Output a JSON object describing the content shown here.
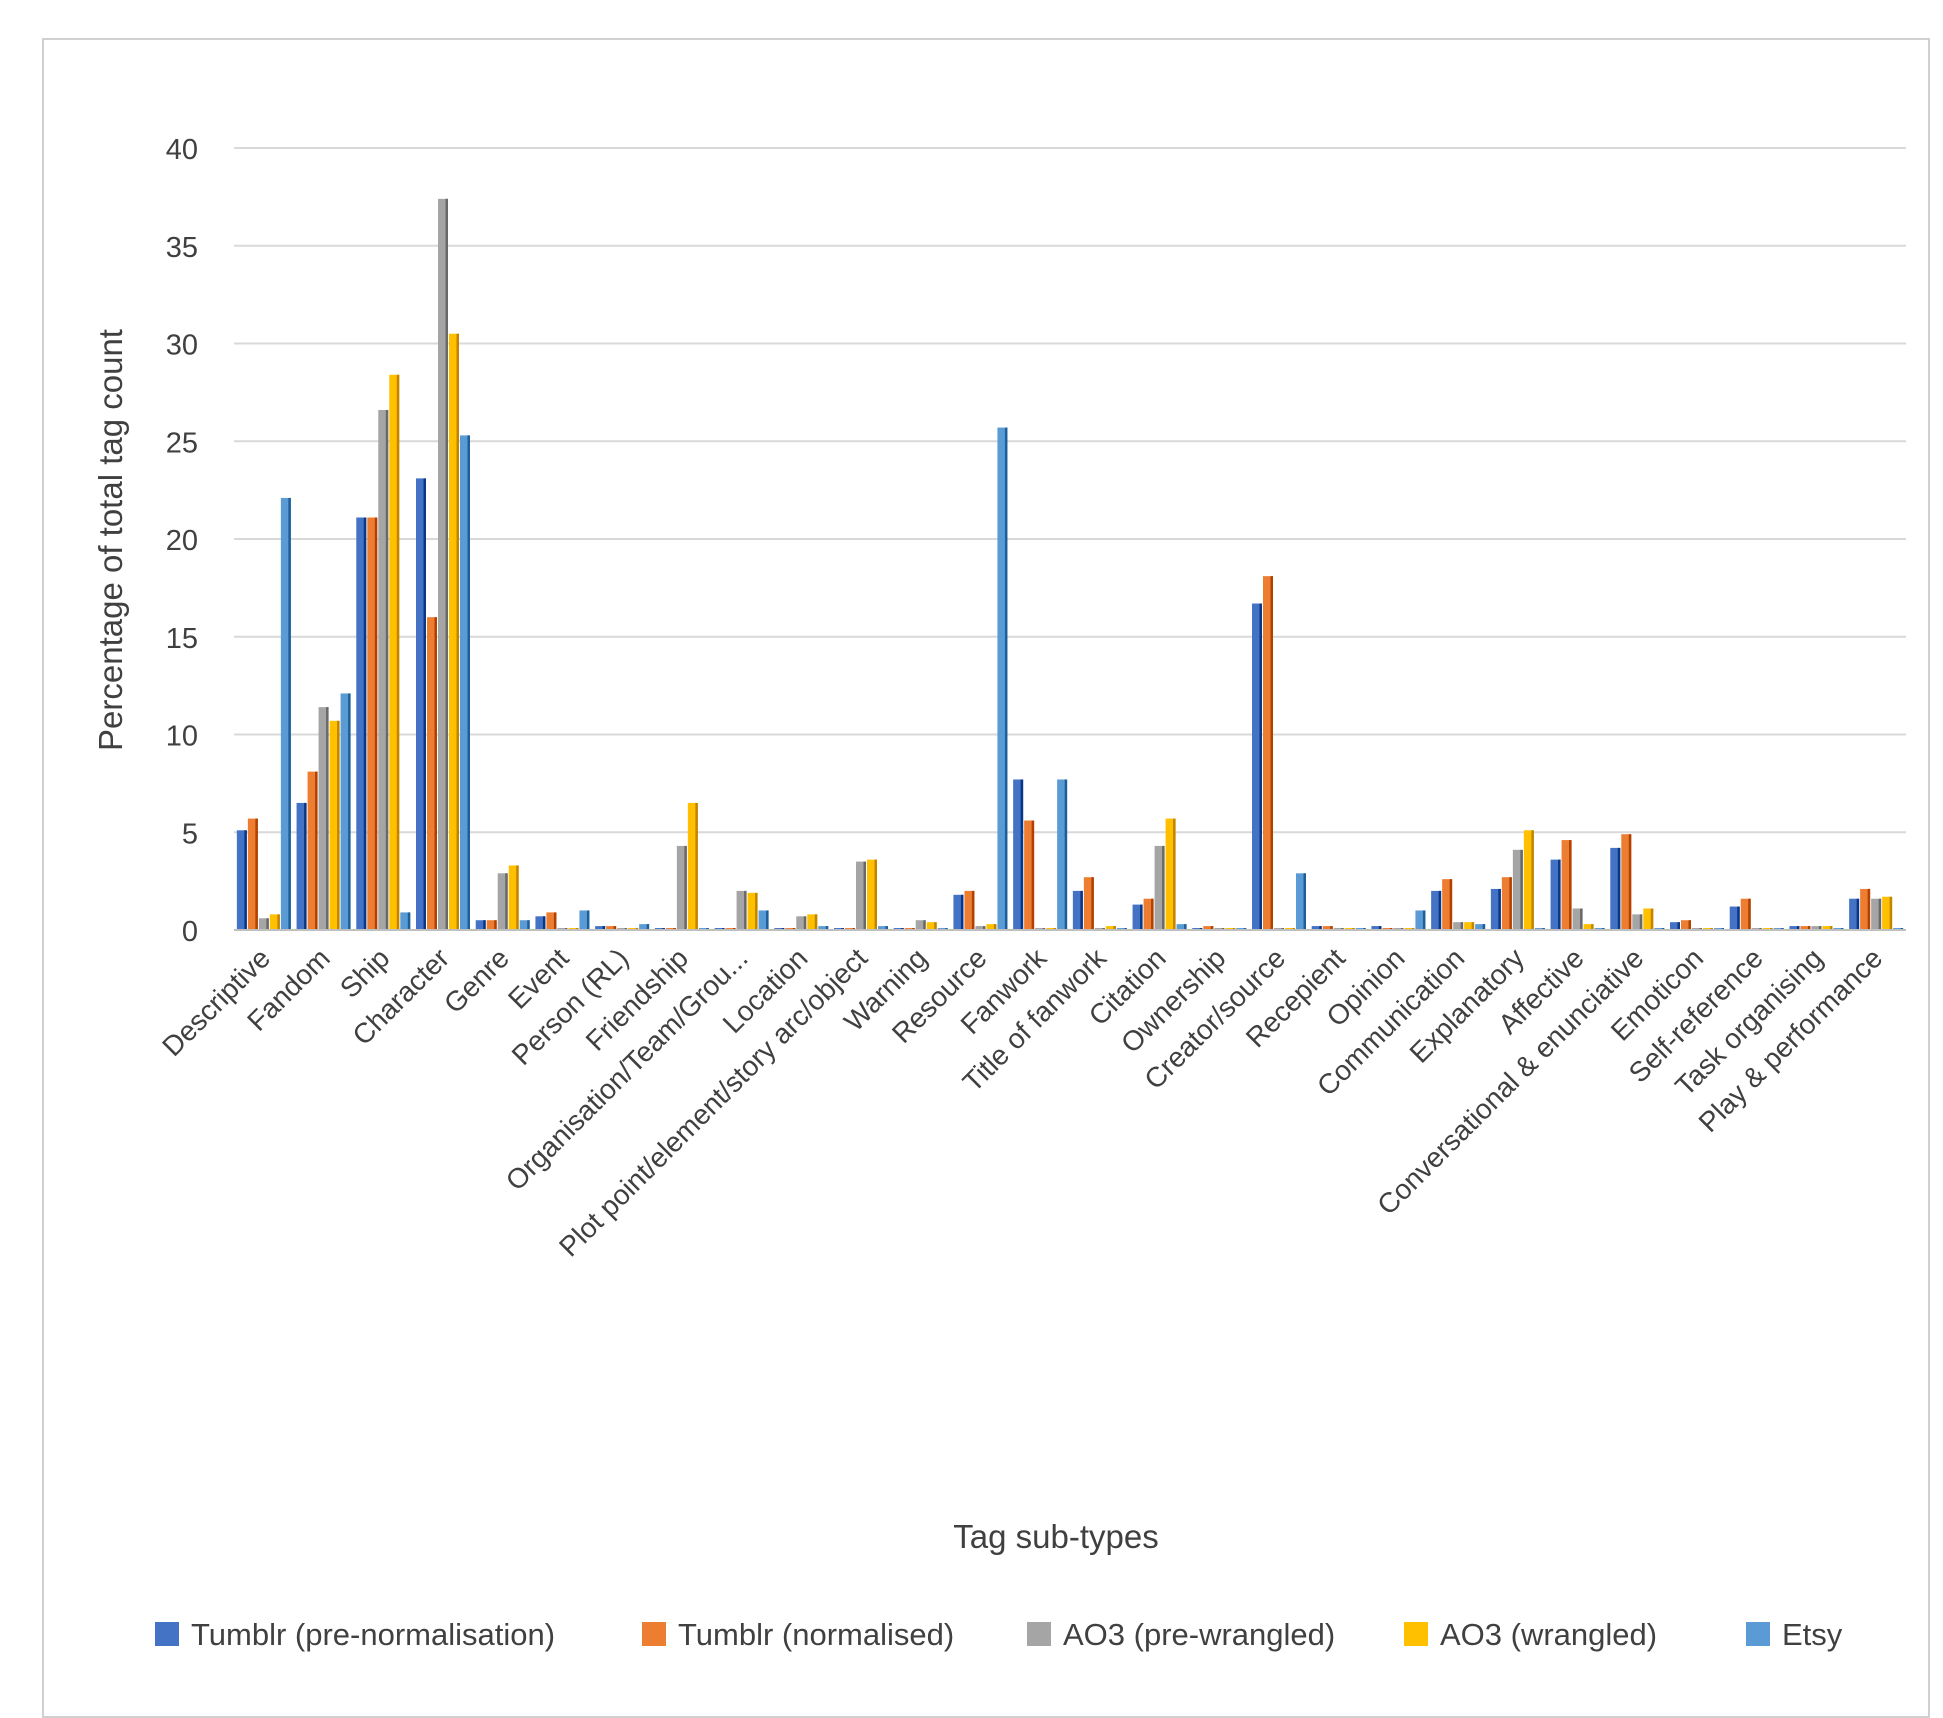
{
  "chart_data": {
    "type": "bar",
    "title": "",
    "xlabel": "Tag sub-types",
    "ylabel": "Percentage of total tag count",
    "ylim": [
      0,
      40
    ],
    "yticks": [
      0,
      5,
      10,
      15,
      20,
      25,
      30,
      35,
      40
    ],
    "grid": true,
    "legend_position": "bottom",
    "categories": [
      "Descriptive",
      "Fandom",
      "Ship",
      "Character",
      "Genre",
      "Event",
      "Person (RL)",
      "Friendship",
      "Organisation/Team/Grou...",
      "Location",
      "Plot point/element/story arc/object",
      "Warning",
      "Resource",
      "Fanwork",
      "Title of fanwork",
      "Citation",
      "Ownership",
      "Creator/source",
      "Recepient",
      "Opinion",
      "Communication",
      "Explanatory",
      "Affective",
      "Conversational & enunciative",
      "Emoticon",
      "Self-reference",
      "Task organising",
      "Play & performance"
    ],
    "series": [
      {
        "name": "Tumblr (pre-normalisation)",
        "color": "#4472c4",
        "values": [
          5.1,
          6.5,
          21.1,
          23.1,
          0.5,
          0.7,
          0.2,
          0.1,
          0.1,
          0.1,
          0.1,
          0.1,
          1.8,
          7.7,
          2.0,
          1.3,
          0.1,
          16.7,
          0.2,
          0.2,
          2.0,
          2.1,
          3.6,
          4.2,
          0.4,
          1.2,
          0.2,
          1.6
        ]
      },
      {
        "name": "Tumblr (normalised)",
        "color": "#ed7d31",
        "values": [
          5.7,
          8.1,
          21.1,
          16.0,
          0.5,
          0.9,
          0.2,
          0.1,
          0.1,
          0.1,
          0.1,
          0.1,
          2.0,
          5.6,
          2.7,
          1.6,
          0.2,
          18.1,
          0.2,
          0.1,
          2.6,
          2.7,
          4.6,
          4.9,
          0.5,
          1.6,
          0.2,
          2.1
        ]
      },
      {
        "name": "AO3 (pre-wrangled)",
        "color": "#a5a5a5",
        "values": [
          0.6,
          11.4,
          26.6,
          37.4,
          2.9,
          0.1,
          0.1,
          4.3,
          2.0,
          0.7,
          3.5,
          0.5,
          0.2,
          0.1,
          0.1,
          4.3,
          0.1,
          0.1,
          0.1,
          0.1,
          0.4,
          4.1,
          1.1,
          0.8,
          0.1,
          0.1,
          0.2,
          1.6
        ]
      },
      {
        "name": "AO3 (wrangled)",
        "color": "#ffc000",
        "values": [
          0.8,
          10.7,
          28.4,
          30.5,
          3.3,
          0.1,
          0.1,
          6.5,
          1.9,
          0.8,
          3.6,
          0.4,
          0.3,
          0.1,
          0.2,
          5.7,
          0.1,
          0.1,
          0.1,
          0.1,
          0.4,
          5.1,
          0.3,
          1.1,
          0.1,
          0.1,
          0.2,
          1.7
        ]
      },
      {
        "name": "Etsy",
        "color": "#5b9bd5",
        "values": [
          22.1,
          12.1,
          0.9,
          25.3,
          0.5,
          1.0,
          0.3,
          0.1,
          1.0,
          0.2,
          0.2,
          0.1,
          25.7,
          7.7,
          0.1,
          0.3,
          0.1,
          2.9,
          0.1,
          1.0,
          0.3,
          0.1,
          0.1,
          0.1,
          0.1,
          0.1,
          0.1,
          0.1
        ]
      }
    ]
  }
}
